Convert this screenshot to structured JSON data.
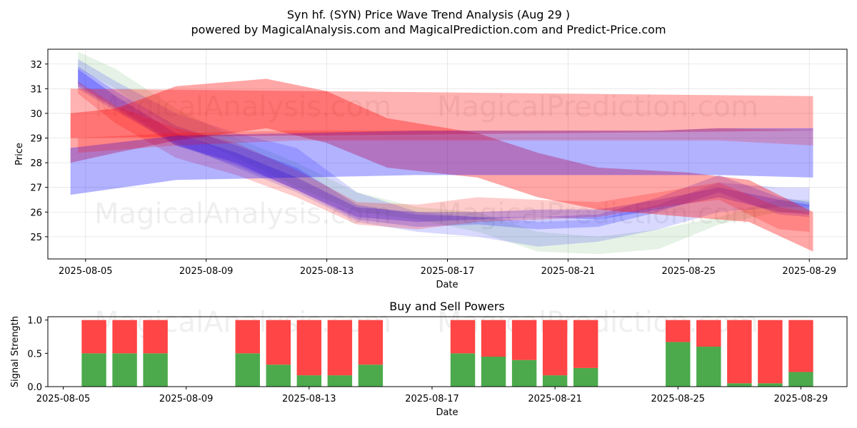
{
  "title": "Syn hf. (SYN) Price Wave Trend Analysis (Aug 29 )",
  "subtitle": "powered by MagicalAnalysis.com and MagicalPrediction.com and Predict-Price.com",
  "watermarks": [
    "MagicalAnalysis.com",
    "MagicalPrediction.com"
  ],
  "chart_data": [
    {
      "type": "area",
      "ylabel": "Price",
      "xlabel": "Date",
      "ylim": [
        24.1,
        32.6
      ],
      "xlim": [
        "2025-08-03T18:00",
        "2025-08-30T06:00"
      ],
      "yticks": [
        25,
        26,
        27,
        28,
        29,
        30,
        31,
        32
      ],
      "xticks": [
        "2025-08-05",
        "2025-08-09",
        "2025-08-13",
        "2025-08-17",
        "2025-08-21",
        "2025-08-25",
        "2025-08-29"
      ],
      "grid": true,
      "colors": {
        "red": "#ff0000",
        "blue": "#0000ff",
        "green": "#008000"
      },
      "bands": [
        {
          "color": "green",
          "opacity": 0.1,
          "x": [
            "2025-08-04T18:00",
            "2025-08-06",
            "2025-08-08",
            "2025-08-10",
            "2025-08-12",
            "2025-08-14",
            "2025-08-16",
            "2025-08-18",
            "2025-08-20",
            "2025-08-22",
            "2025-08-24",
            "2025-08-26",
            "2025-08-28",
            "2025-08-29"
          ],
          "upper": [
            32.5,
            31.8,
            30.2,
            29,
            28,
            26.8,
            26.2,
            26,
            25.2,
            25,
            25.3,
            25.8,
            26.5,
            26.5
          ],
          "lower": [
            31.8,
            31,
            29.3,
            28.2,
            27,
            26,
            25.7,
            25.2,
            24.4,
            24.3,
            24.5,
            25.5,
            26,
            26
          ]
        },
        {
          "color": "blue",
          "opacity": 0.15,
          "x": [
            "2025-08-04T18:00",
            "2025-08-06",
            "2025-08-08",
            "2025-08-10",
            "2025-08-12",
            "2025-08-14",
            "2025-08-16",
            "2025-08-18",
            "2025-08-20",
            "2025-08-22",
            "2025-08-24",
            "2025-08-26",
            "2025-08-28",
            "2025-08-29"
          ],
          "upper": [
            32.2,
            31.3,
            30,
            29.2,
            28.6,
            26.8,
            26,
            25.8,
            25.6,
            25.7,
            26.3,
            27.2,
            27,
            27
          ],
          "lower": [
            31.2,
            30.3,
            28.8,
            27.8,
            26.8,
            25.6,
            25.2,
            25,
            24.6,
            24.8,
            25.3,
            26,
            26.2,
            26.2
          ]
        },
        {
          "color": "blue",
          "opacity": 0.2,
          "x": [
            "2025-08-04T18:00",
            "2025-08-06",
            "2025-08-08",
            "2025-08-10",
            "2025-08-12",
            "2025-08-14",
            "2025-08-16",
            "2025-08-18",
            "2025-08-20",
            "2025-08-22",
            "2025-08-24",
            "2025-08-26",
            "2025-08-28",
            "2025-08-29"
          ],
          "upper": [
            31.9,
            30.9,
            29.5,
            28.7,
            27.8,
            26.3,
            25.9,
            25.8,
            25.8,
            25.9,
            26.6,
            27.5,
            26.6,
            26.4
          ],
          "lower": [
            31,
            30.1,
            28.7,
            27.9,
            26.9,
            25.7,
            25.4,
            25.5,
            25.3,
            25.4,
            26,
            26.8,
            25.9,
            25.8
          ]
        },
        {
          "color": "blue",
          "opacity": 0.25,
          "x": [
            "2025-08-04T18:00",
            "2025-08-06",
            "2025-08-08",
            "2025-08-10",
            "2025-08-12",
            "2025-08-14",
            "2025-08-16",
            "2025-08-18",
            "2025-08-20",
            "2025-08-22",
            "2025-08-24",
            "2025-08-26",
            "2025-08-28",
            "2025-08-29"
          ],
          "upper": [
            31.8,
            30.7,
            29.2,
            28.4,
            27.4,
            26.2,
            26,
            26,
            26.1,
            26.1,
            26.5,
            27,
            26.5,
            26.3
          ],
          "lower": [
            31.1,
            30.2,
            28.7,
            28,
            26.9,
            25.8,
            25.6,
            25.7,
            25.8,
            25.7,
            26.1,
            26.6,
            26,
            25.9
          ]
        },
        {
          "color": "red",
          "opacity": 0.2,
          "x": [
            "2025-08-04T18:00",
            "2025-08-06",
            "2025-08-08",
            "2025-08-10",
            "2025-08-12",
            "2025-08-14",
            "2025-08-16",
            "2025-08-18",
            "2025-08-20",
            "2025-08-22",
            "2025-08-24",
            "2025-08-26",
            "2025-08-28",
            "2025-08-29"
          ],
          "upper": [
            31.3,
            30.3,
            29.4,
            28.8,
            27.7,
            26.4,
            26.3,
            26.6,
            26.5,
            26.4,
            26.8,
            27.2,
            26.2,
            26
          ],
          "lower": [
            30.8,
            29.6,
            28.2,
            27.5,
            26.6,
            25.5,
            25.3,
            25.6,
            25.7,
            25.8,
            26.2,
            26.5,
            25.3,
            25.2
          ]
        },
        {
          "color": "red",
          "opacity": 0.3,
          "x": [
            "2025-08-04T12:00",
            "2025-08-29T03:00"
          ],
          "upper": [
            31.0,
            30.7
          ],
          "lower": [
            29.0,
            29.3
          ]
        },
        {
          "color": "red",
          "opacity": 0.35,
          "x": [
            "2025-08-04T12:00",
            "2025-08-06",
            "2025-08-08",
            "2025-08-11",
            "2025-08-13",
            "2025-08-15",
            "2025-08-18",
            "2025-08-20",
            "2025-08-22",
            "2025-08-25",
            "2025-08-27",
            "2025-08-29T03:00"
          ],
          "upper": [
            30.0,
            30.2,
            31.1,
            31.4,
            30.9,
            29.8,
            29.2,
            28.4,
            27.8,
            27.6,
            27.3,
            26.0
          ],
          "lower": [
            28.0,
            28.4,
            28.9,
            29.4,
            28.8,
            27.8,
            27.4,
            26.6,
            26.1,
            25.8,
            25.6,
            24.4
          ]
        },
        {
          "color": "blue",
          "opacity": 0.3,
          "x": [
            "2025-08-04T12:00",
            "2025-08-08",
            "2025-08-12",
            "2025-08-16",
            "2025-08-20",
            "2025-08-24",
            "2025-08-26",
            "2025-08-29T03:00"
          ],
          "upper": [
            28.6,
            29.1,
            29.2,
            29.3,
            29.3,
            29.3,
            29.4,
            29.4
          ],
          "lower": [
            26.7,
            27.3,
            27.4,
            27.5,
            27.5,
            27.5,
            27.5,
            27.4
          ]
        },
        {
          "color": "red",
          "opacity": 0.2,
          "x": [
            "2025-08-04T18:00",
            "2025-08-08",
            "2025-08-12",
            "2025-08-16",
            "2025-08-20",
            "2025-08-24",
            "2025-08-26",
            "2025-08-29T03:00"
          ],
          "upper": [
            29.0,
            29.2,
            29.3,
            29.3,
            29.3,
            29.3,
            29.4,
            29.3
          ],
          "lower": [
            28.4,
            28.7,
            28.9,
            28.9,
            28.9,
            28.9,
            28.9,
            28.7
          ]
        }
      ]
    },
    {
      "type": "bar",
      "title": "Buy and Sell Powers",
      "ylabel": "Signal Strength",
      "xlabel": "Date",
      "ylim": [
        0,
        1.05
      ],
      "yticks": [
        "0.0",
        "0.5",
        "1.0"
      ],
      "xticks": [
        "2025-08-05",
        "2025-08-09",
        "2025-08-13",
        "2025-08-17",
        "2025-08-21",
        "2025-08-25",
        "2025-08-29"
      ],
      "xlim": [
        "2025-08-04T12:00",
        "2025-08-30T12:00"
      ],
      "colors": {
        "buy": "#4caa4c",
        "sell": "#ff4545"
      },
      "dates": [
        "2025-08-06",
        "2025-08-07",
        "2025-08-08",
        "2025-08-11",
        "2025-08-12",
        "2025-08-13",
        "2025-08-14",
        "2025-08-15",
        "2025-08-18",
        "2025-08-19",
        "2025-08-20",
        "2025-08-21",
        "2025-08-22",
        "2025-08-25",
        "2025-08-26",
        "2025-08-27",
        "2025-08-28",
        "2025-08-29"
      ],
      "buy": [
        0.5,
        0.5,
        0.5,
        0.5,
        0.33,
        0.17,
        0.17,
        0.33,
        0.5,
        0.45,
        0.4,
        0.17,
        0.28,
        0.67,
        0.6,
        0.05,
        0.05,
        0.22
      ],
      "sell": [
        0.5,
        0.5,
        0.5,
        0.5,
        0.67,
        0.83,
        0.83,
        0.67,
        0.5,
        0.55,
        0.6,
        0.83,
        0.72,
        0.33,
        0.4,
        0.95,
        0.95,
        0.78
      ]
    }
  ]
}
